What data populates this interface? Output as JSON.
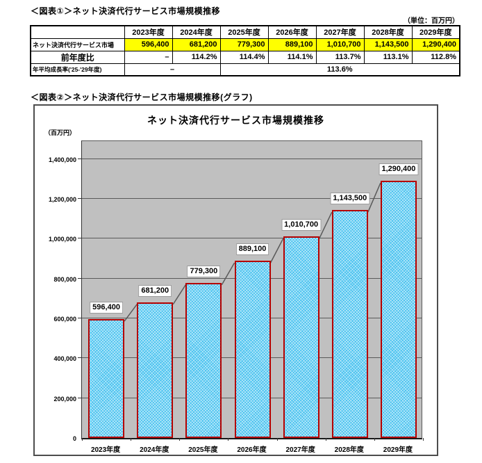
{
  "fig1": {
    "heading": "＜図表①＞ネット決済代行サービス市場規模推移",
    "unit_note": "（単位：百万円）",
    "table": {
      "col_headers": [
        "2023年度",
        "2024年度",
        "2025年度",
        "2026年度",
        "2027年度",
        "2028年度",
        "2029年度"
      ],
      "market_row": {
        "label": "ネット決済代行サービス市場",
        "values": [
          "596,400",
          "681,200",
          "779,300",
          "889,100",
          "1,010,700",
          "1,143,500",
          "1,290,400"
        ],
        "highlight_color": "#ffff00"
      },
      "yoy_row": {
        "label": "前年度比",
        "values": [
          "–",
          "114.2%",
          "114.4%",
          "114.1%",
          "113.7%",
          "113.1%",
          "112.8%"
        ]
      },
      "cagr_row": {
        "label": "年平均成長率('25-'29年度)",
        "left_span_value": "–",
        "right_span_value": "113.6%"
      }
    }
  },
  "fig2": {
    "heading": "＜図表②＞ネット決済代行サービス市場規模推移(グラフ)"
  },
  "chart_data": {
    "type": "bar",
    "title": "ネット決済代行サービス市場規模推移",
    "y_unit_label": "（百万円）",
    "xlabel": "",
    "ylabel": "",
    "categories": [
      "2023年度",
      "2024年度",
      "2025年度",
      "2026年度",
      "2027年度",
      "2028年度",
      "2029年度"
    ],
    "values": [
      596400,
      681200,
      779300,
      889100,
      1010700,
      1143500,
      1290400
    ],
    "data_labels": [
      "596,400",
      "681,200",
      "779,300",
      "889,100",
      "1,010,700",
      "1,143,500",
      "1,290,400"
    ],
    "ylim": [
      0,
      1500000
    ],
    "ytick_step": 200000,
    "ytick_labels": [
      "0",
      "200,000",
      "400,000",
      "600,000",
      "800,000",
      "1,000,000",
      "1,200,000",
      "1,400,000"
    ],
    "grid": true,
    "legend": false,
    "plot_bg_color": "#c0c0c0",
    "bar_fill_color": "#45c1ef",
    "bar_border_color": "#b40000",
    "series_line_color": "#595959",
    "highlight_color": "#ffff00"
  }
}
